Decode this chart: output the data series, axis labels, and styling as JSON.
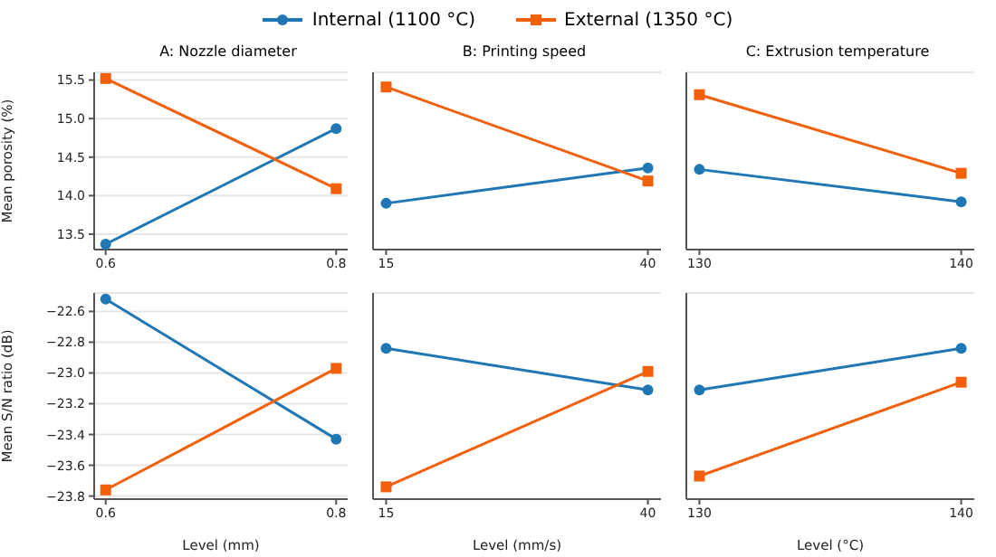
{
  "chart_data": [
    {
      "type": "line",
      "title": "A: Nozzle diameter",
      "ylabel": "Mean porosity (%)",
      "x": [
        0.6,
        0.8
      ],
      "xlim": [
        0.59,
        0.81
      ],
      "xticks": [
        0.6,
        0.8
      ],
      "ylim": [
        13.3,
        15.6
      ],
      "yticks": [
        13.5,
        {
          "value": 14,
          "label": "14.0"
        },
        14.5,
        {
          "value": 15,
          "label": "15.0"
        },
        15.5
      ],
      "grid": "y",
      "legend": "top",
      "series": [
        {
          "name": "Internal (1100 °C)",
          "color": "#1f77b4",
          "marker": "circle",
          "values": [
            13.37,
            14.87
          ]
        },
        {
          "name": "External (1350 °C)",
          "color": "#f2600c",
          "marker": "square",
          "values": [
            15.52,
            14.09
          ]
        }
      ]
    },
    {
      "type": "line",
      "title": "B: Printing speed",
      "x": [
        15,
        40
      ],
      "xlim": [
        13.75,
        41.25
      ],
      "xticks": [
        15,
        40
      ],
      "ylim": [
        13.3,
        15.6
      ],
      "yticks": [
        13.5,
        14,
        14.5,
        15,
        15.5
      ],
      "grid": "y",
      "tick_labels": "x",
      "series": [
        {
          "color": "#1f77b4",
          "marker": "circle",
          "values": [
            13.9,
            14.36
          ]
        },
        {
          "color": "#f2600c",
          "marker": "square",
          "values": [
            15.41,
            14.19
          ]
        }
      ]
    },
    {
      "type": "line",
      "title": "C: Extrusion temperature",
      "x": [
        130,
        140
      ],
      "xlim": [
        129.5,
        140.5
      ],
      "xticks": [
        130,
        140
      ],
      "ylim": [
        13.3,
        15.6
      ],
      "yticks": [
        13.5,
        14,
        14.5,
        15,
        15.5
      ],
      "grid": "y",
      "tick_labels": "x",
      "series": [
        {
          "color": "#1f77b4",
          "marker": "circle",
          "values": [
            14.34,
            13.92
          ]
        },
        {
          "color": "#f2600c",
          "marker": "square",
          "values": [
            15.31,
            14.29
          ]
        }
      ]
    },
    {
      "type": "line",
      "xlabel": "Level (mm)",
      "ylabel": "Mean S/N ratio (dB)",
      "x": [
        0.6,
        0.8
      ],
      "xlim": [
        0.59,
        0.81
      ],
      "xticks": [
        0.6,
        0.8
      ],
      "ylim": [
        -23.82,
        -22.48
      ],
      "yticks": [
        -23.8,
        -23.6,
        -23.4,
        -23.2,
        {
          "value": -23,
          "label": "−23.0"
        },
        -22.8,
        -22.6
      ],
      "grid": "y",
      "series": [
        {
          "color": "#1f77b4",
          "marker": "circle",
          "values": [
            -22.52,
            -23.43
          ]
        },
        {
          "color": "#f2600c",
          "marker": "square",
          "values": [
            -23.76,
            -22.97
          ]
        }
      ]
    },
    {
      "type": "line",
      "xlabel": "Level (mm/s)",
      "x": [
        15,
        40
      ],
      "xlim": [
        13.75,
        41.25
      ],
      "xticks": [
        15,
        40
      ],
      "ylim": [
        -23.82,
        -22.48
      ],
      "yticks": [
        -23.8,
        -23.6,
        -23.4,
        -23.2,
        -23,
        -22.8,
        -22.6
      ],
      "grid": "y",
      "tick_labels": "x",
      "series": [
        {
          "color": "#1f77b4",
          "marker": "circle",
          "values": [
            -22.84,
            -23.11
          ]
        },
        {
          "color": "#f2600c",
          "marker": "square",
          "values": [
            -23.74,
            -22.99
          ]
        }
      ]
    },
    {
      "type": "line",
      "xlabel": "Level (°C)",
      "x": [
        130,
        140
      ],
      "xlim": [
        129.5,
        140.5
      ],
      "xticks": [
        130,
        140
      ],
      "ylim": [
        -23.82,
        -22.48
      ],
      "yticks": [
        -23.8,
        -23.6,
        -23.4,
        -23.2,
        -23,
        -22.8,
        -22.6
      ],
      "grid": "y",
      "tick_labels": "x",
      "series": [
        {
          "color": "#1f77b4",
          "marker": "circle",
          "values": [
            -23.11,
            -22.84
          ]
        },
        {
          "color": "#f2600c",
          "marker": "square",
          "values": [
            -23.67,
            -23.06
          ]
        }
      ]
    }
  ]
}
